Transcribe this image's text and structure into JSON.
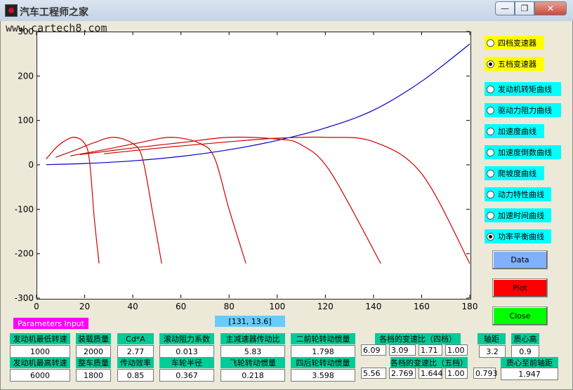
{
  "window": {
    "title": "汽车工程师之家",
    "watermark": "www.cartech8.com",
    "min_glyph": "—",
    "restore_glyph": "❐",
    "close_glyph": "✕"
  },
  "chart_data": {
    "type": "line",
    "xlim": [
      0,
      180
    ],
    "ylim": [
      -300,
      300
    ],
    "xticks": [
      "0",
      "20",
      "40",
      "60",
      "80",
      "100",
      "120",
      "140",
      "160",
      "180"
    ],
    "yticks": [
      "300",
      "200",
      "100",
      "0",
      "-100",
      "-200",
      "-300"
    ],
    "grid": false,
    "series": [
      {
        "color": "#0000cc",
        "x": [
          4,
          20,
          40,
          60,
          80,
          100,
          120,
          140,
          160,
          180
        ],
        "y": [
          0.5,
          3,
          9,
          19,
          34,
          55,
          83,
          123,
          188,
          272
        ]
      },
      {
        "color": "#cc0000",
        "x": [
          4,
          8,
          12,
          16,
          20,
          22,
          24,
          26
        ],
        "y": [
          13,
          38,
          55,
          62,
          48,
          10,
          -120,
          -222
        ]
      },
      {
        "color": "#cc0000",
        "x": [
          8,
          16,
          24,
          32,
          40,
          44,
          48,
          52
        ],
        "y": [
          17,
          33,
          50,
          62,
          48,
          15,
          -100,
          -222
        ]
      },
      {
        "color": "#cc0000",
        "x": [
          14,
          28,
          42,
          56,
          68,
          74,
          80,
          87
        ],
        "y": [
          20,
          34,
          49,
          62,
          48,
          15,
          -100,
          -222
        ]
      },
      {
        "color": "#cc0000",
        "x": [
          18,
          40,
          60,
          80,
          100,
          110,
          122,
          143
        ],
        "y": [
          23,
          38,
          50,
          62,
          58,
          45,
          -15,
          -222
        ]
      },
      {
        "color": "#cc0000",
        "x": [
          28,
          55,
          80,
          100,
          120,
          140,
          160,
          180
        ],
        "y": [
          25,
          40,
          52,
          60,
          62,
          52,
          -20,
          -222
        ]
      }
    ]
  },
  "status": {
    "param_label": "Parameters Input",
    "coord_readout": "[131, 13.6]"
  },
  "gearbox": [
    {
      "label": "四档变速器",
      "selected": false
    },
    {
      "label": "五档变速器",
      "selected": true
    }
  ],
  "curves": [
    {
      "label": "发动机转矩曲线",
      "selected": false
    },
    {
      "label": "驱动力阻力曲线",
      "selected": false
    },
    {
      "label": "加速度曲线",
      "selected": false
    },
    {
      "label": "加速度倒数曲线",
      "selected": false
    },
    {
      "label": "爬坡度曲线",
      "selected": false
    },
    {
      "label": "动力特性曲线",
      "selected": false
    },
    {
      "label": "加速时间曲线",
      "selected": false
    },
    {
      "label": "功率平衡曲线",
      "selected": true
    }
  ],
  "buttons": {
    "data": "Data",
    "plot": "Plot",
    "close": "Close"
  },
  "params": {
    "min_speed_label": "发动机最低转速",
    "min_speed": "1000",
    "max_speed_label": "发动机最高转速",
    "max_speed": "6000",
    "load_mass_label": "装载质量",
    "load_mass": "2000",
    "curb_mass_label": "整车质量",
    "curb_mass": "1800",
    "cda_label": "Cd*A",
    "cda": "2.77",
    "eff_label": "传动效率",
    "eff": "0.85",
    "roll_label": "滚动阻力系数",
    "roll": "0.013",
    "radius_label": "车轮半径",
    "radius": "0.367",
    "final_label": "主减速器传动比",
    "final": "5.83",
    "flywheel_label": "飞轮转动惯量",
    "flywheel": "0.218",
    "front_inertia_label": "二前轮转动惯量",
    "front_inertia": "1.798",
    "rear_inertia_label": "四后轮转动惯量",
    "rear_inertia": "3.598",
    "ratios4_label": "各档的变速比（四档）",
    "ratios4": [
      "6.09",
      "3.09",
      "1.71",
      "1.00"
    ],
    "ratios5_label": "各档的变速比（五档）",
    "ratios5": [
      "5.56",
      "2.769",
      "1.644",
      "1.00",
      "0.793"
    ],
    "wheelbase_label": "轴距",
    "wheelbase": "3.2",
    "cg_height_label": "质心高",
    "cg_height": "0.9",
    "cg_front_label": "质心至前轴距",
    "cg_front": "1.947"
  }
}
